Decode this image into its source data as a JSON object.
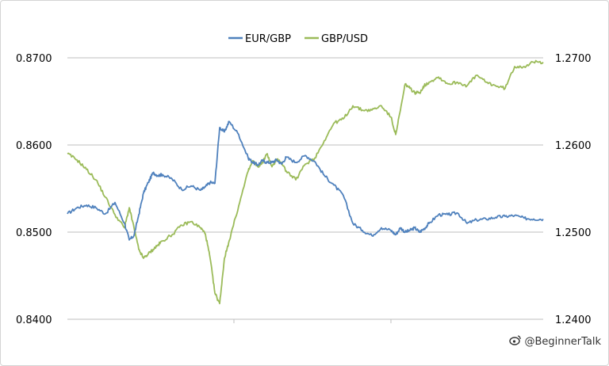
{
  "chart_data": {
    "type": "line",
    "title": "",
    "xlabel": "",
    "y_left": {
      "label": "",
      "lim": [
        0.84,
        0.87
      ],
      "ticks": [
        "0.8400",
        "0.8500",
        "0.8600",
        "0.8700"
      ]
    },
    "y_right": {
      "label": "",
      "lim": [
        1.24,
        1.27
      ],
      "ticks": [
        "1.2400",
        "1.2500",
        "1.2600",
        "1.2700"
      ]
    },
    "grid": "horizontal",
    "legend_position": "top-center",
    "series": [
      {
        "name": "EUR/GBP",
        "axis": "left",
        "color": "#4f81bd",
        "x": [
          0,
          0.02,
          0.04,
          0.06,
          0.08,
          0.1,
          0.12,
          0.13,
          0.14,
          0.15,
          0.16,
          0.17,
          0.18,
          0.19,
          0.2,
          0.22,
          0.24,
          0.26,
          0.28,
          0.29,
          0.3,
          0.31,
          0.32,
          0.33,
          0.34,
          0.36,
          0.38,
          0.39,
          0.4,
          0.41,
          0.42,
          0.43,
          0.44,
          0.45,
          0.46,
          0.48,
          0.5,
          0.52,
          0.54,
          0.56,
          0.58,
          0.6,
          0.62,
          0.64,
          0.66,
          0.68,
          0.69,
          0.7,
          0.71,
          0.72,
          0.73,
          0.74,
          0.75,
          0.76,
          0.78,
          0.8,
          0.82,
          0.84,
          0.86,
          0.88,
          0.9,
          0.92,
          0.94,
          0.96,
          0.98,
          1.0
        ],
        "y": [
          0.8521,
          0.8528,
          0.8531,
          0.8528,
          0.8521,
          0.8534,
          0.851,
          0.8491,
          0.8496,
          0.852,
          0.8545,
          0.8557,
          0.8568,
          0.8565,
          0.8566,
          0.8561,
          0.8549,
          0.8553,
          0.8548,
          0.8552,
          0.8557,
          0.8556,
          0.862,
          0.8615,
          0.8627,
          0.8612,
          0.8585,
          0.858,
          0.8577,
          0.8582,
          0.858,
          0.858,
          0.8583,
          0.8578,
          0.8586,
          0.858,
          0.8588,
          0.8581,
          0.8565,
          0.8554,
          0.8542,
          0.851,
          0.8502,
          0.8496,
          0.8505,
          0.8502,
          0.8497,
          0.8505,
          0.85,
          0.8502,
          0.8505,
          0.85,
          0.8504,
          0.851,
          0.852,
          0.852,
          0.8522,
          0.851,
          0.8514,
          0.8515,
          0.8517,
          0.8518,
          0.8519,
          0.8516,
          0.8515,
          0.8515
        ]
      },
      {
        "name": "GBP/USD",
        "axis": "right",
        "color": "#9bbb59",
        "x": [
          0,
          0.02,
          0.04,
          0.06,
          0.08,
          0.1,
          0.12,
          0.13,
          0.14,
          0.15,
          0.16,
          0.17,
          0.18,
          0.19,
          0.2,
          0.22,
          0.24,
          0.26,
          0.28,
          0.29,
          0.3,
          0.31,
          0.32,
          0.33,
          0.34,
          0.36,
          0.38,
          0.39,
          0.4,
          0.41,
          0.42,
          0.43,
          0.44,
          0.45,
          0.46,
          0.48,
          0.5,
          0.52,
          0.54,
          0.56,
          0.58,
          0.6,
          0.62,
          0.64,
          0.66,
          0.68,
          0.69,
          0.7,
          0.71,
          0.72,
          0.73,
          0.74,
          0.75,
          0.76,
          0.78,
          0.8,
          0.82,
          0.84,
          0.86,
          0.88,
          0.9,
          0.92,
          0.94,
          0.96,
          0.98,
          1.0
        ],
        "y": [
          1.259,
          1.2583,
          1.2572,
          1.256,
          1.254,
          1.252,
          1.2505,
          1.2528,
          1.2505,
          1.248,
          1.247,
          1.2475,
          1.248,
          1.2485,
          1.249,
          1.2497,
          1.2508,
          1.2512,
          1.2505,
          1.2498,
          1.247,
          1.243,
          1.2418,
          1.247,
          1.249,
          1.253,
          1.257,
          1.2582,
          1.2575,
          1.258,
          1.259,
          1.2575,
          1.2583,
          1.258,
          1.257,
          1.256,
          1.2578,
          1.2585,
          1.2605,
          1.2625,
          1.263,
          1.2645,
          1.264,
          1.264,
          1.2645,
          1.2632,
          1.2612,
          1.264,
          1.267,
          1.2665,
          1.266,
          1.266,
          1.2668,
          1.2672,
          1.2678,
          1.267,
          1.2672,
          1.2668,
          1.268,
          1.2672,
          1.2668,
          1.2665,
          1.269,
          1.269,
          1.2695,
          1.2695
        ]
      }
    ]
  },
  "watermark": {
    "text": "@BeginnerTalk",
    "icon": "weibo-logo-icon"
  }
}
